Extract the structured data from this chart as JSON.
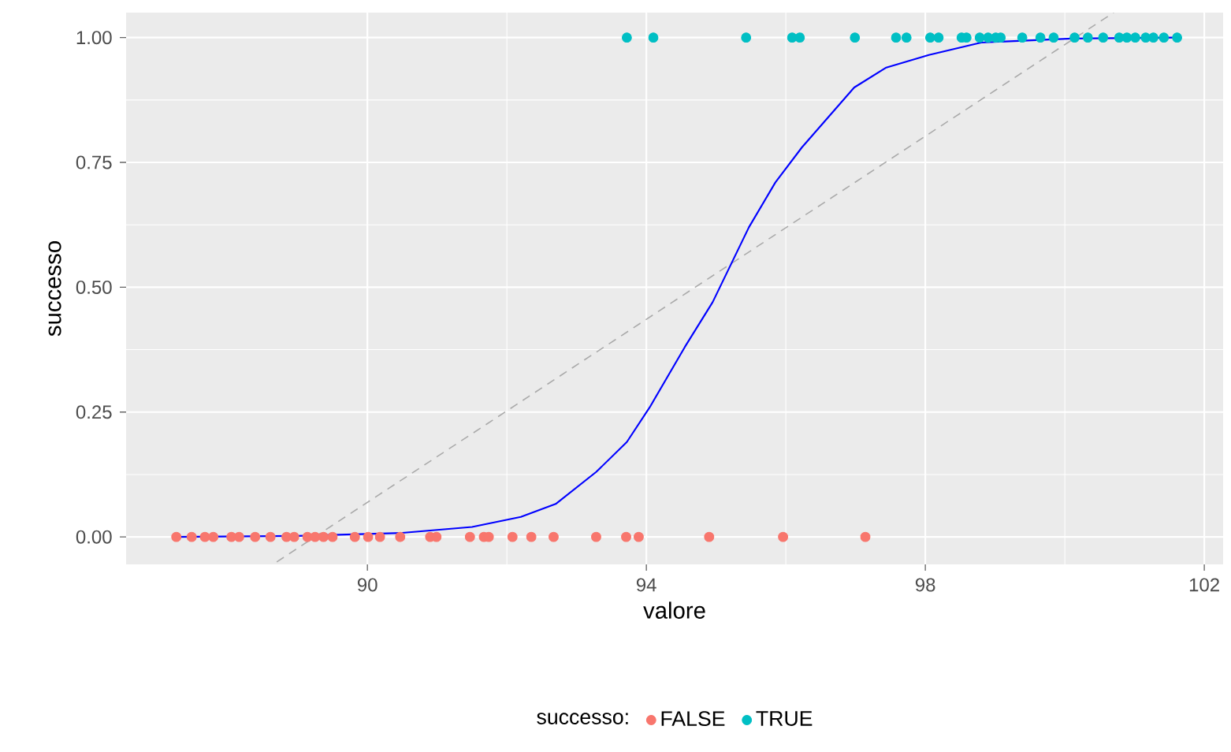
{
  "chart_data": {
    "type": "scatter",
    "xlabel": "valore",
    "ylabel": "successo",
    "legend_title": "successo:",
    "legend": "bottom",
    "grid": true,
    "xlim": [
      86.54,
      102.27
    ],
    "ylim": [
      -0.055,
      1.05
    ],
    "xticks": [
      90,
      94,
      98,
      102
    ],
    "yticks": [
      {
        "value": 0,
        "label": "0.00"
      },
      {
        "value": 0.25,
        "label": "0.25"
      },
      {
        "value": 0.5,
        "label": "0.50"
      },
      {
        "value": 0.75,
        "label": "0.75"
      },
      {
        "value": 1,
        "label": "1.00"
      }
    ],
    "series": [
      {
        "name": "FALSE",
        "color": "#f8766d",
        "marker": "circle",
        "x": [
          87.26,
          87.48,
          87.67,
          87.79,
          88.05,
          88.16,
          88.39,
          88.61,
          88.84,
          88.95,
          89.14,
          89.25,
          89.37,
          89.5,
          89.82,
          90.01,
          90.18,
          90.47,
          90.9,
          90.99,
          91.47,
          91.67,
          91.74,
          92.08,
          92.35,
          92.67,
          93.28,
          93.71,
          93.89,
          94.9,
          95.96,
          97.14
        ],
        "values": [
          0,
          0,
          0,
          0,
          0,
          0,
          0,
          0,
          0,
          0,
          0,
          0,
          0,
          0,
          0,
          0,
          0,
          0,
          0,
          0,
          0,
          0,
          0,
          0,
          0,
          0,
          0,
          0,
          0,
          0,
          0,
          0
        ]
      },
      {
        "name": "TRUE",
        "color": "#00bfc4",
        "marker": "circle",
        "x": [
          93.72,
          94.1,
          95.43,
          96.09,
          96.2,
          96.99,
          97.58,
          97.73,
          98.07,
          98.19,
          98.52,
          98.59,
          98.78,
          98.9,
          99.01,
          99.08,
          99.39,
          99.65,
          99.84,
          100.14,
          100.33,
          100.55,
          100.78,
          100.89,
          101.01,
          101.16,
          101.27,
          101.42,
          101.61
        ],
        "values": [
          1,
          1,
          1,
          1,
          1,
          1,
          1,
          1,
          1,
          1,
          1,
          1,
          1,
          1,
          1,
          1,
          1,
          1,
          1,
          1,
          1,
          1,
          1,
          1,
          1,
          1,
          1,
          1,
          1
        ]
      },
      {
        "type": "line",
        "color": "#aaaaaa",
        "line_style": "dashed",
        "marker": "none",
        "x": [
          88.7,
          100.7
        ],
        "values": [
          -0.05,
          1.05
        ]
      },
      {
        "type": "line",
        "color": "#0000ff",
        "marker": "none",
        "x": [
          87.26,
          89,
          90.5,
          91.5,
          92.2,
          92.7,
          93.28,
          93.72,
          94.05,
          94.55,
          94.95,
          95.47,
          95.85,
          96.23,
          96.98,
          97.44,
          98.05,
          98.8,
          100.1,
          101.61
        ],
        "values": [
          0,
          0.002,
          0.008,
          0.02,
          0.04,
          0.066,
          0.13,
          0.19,
          0.26,
          0.38,
          0.47,
          0.62,
          0.71,
          0.78,
          0.9,
          0.94,
          0.965,
          0.99,
          0.998,
          1
        ]
      }
    ]
  }
}
